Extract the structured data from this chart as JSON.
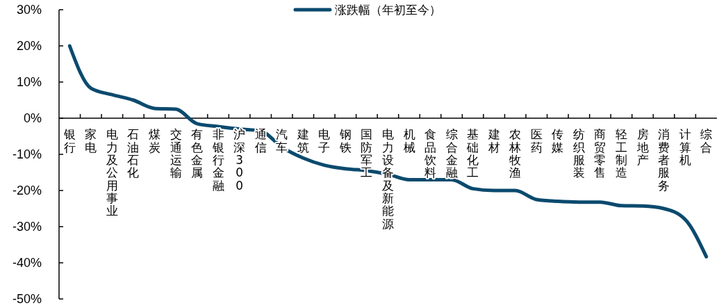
{
  "chart_data": {
    "type": "line",
    "categories": [
      "银行",
      "家电",
      "电力及公用事业",
      "石油石化",
      "煤炭",
      "交通运输",
      "有色金属",
      "非银行金融",
      "沪深300",
      "通信",
      "汽车",
      "建筑",
      "电子",
      "钢铁",
      "国防军工",
      "电力设备及新能源",
      "机械",
      "食品饮料",
      "综合金融",
      "基础化工",
      "建材",
      "农林牧渔",
      "医药",
      "传媒",
      "纺织服装",
      "商贸零售",
      "轻工制造",
      "房地产",
      "消费者服务",
      "计算机",
      "综合"
    ],
    "series": [
      {
        "name": "涨跌幅（年初至今）",
        "color": "#0b4a6e",
        "values": [
          20,
          8.3,
          6.5,
          5,
          2.7,
          2.5,
          -1.5,
          -2.3,
          -3,
          -3.5,
          -8,
          -11,
          -13,
          -14,
          -14.5,
          -15.5,
          -17,
          -17,
          -17,
          -19.5,
          -20,
          -20,
          -22.5,
          -23,
          -23.2,
          -23.2,
          -24.2,
          -24.3,
          -25,
          -28,
          -38.3
        ]
      }
    ],
    "ylim": [
      -50,
      30
    ],
    "yticks": [
      {
        "value": -50,
        "label": "-50%"
      },
      {
        "value": -40,
        "label": "-40%"
      },
      {
        "value": -30,
        "label": "-30%"
      },
      {
        "value": -20,
        "label": "-20%"
      },
      {
        "value": -10,
        "label": "-10%"
      },
      {
        "value": 0,
        "label": "0%"
      },
      {
        "value": 10,
        "label": "10%"
      },
      {
        "value": 20,
        "label": "20%"
      },
      {
        "value": 30,
        "label": "30%"
      }
    ],
    "legend": "top",
    "grid": false,
    "marker": "none",
    "line_style": "solid"
  }
}
